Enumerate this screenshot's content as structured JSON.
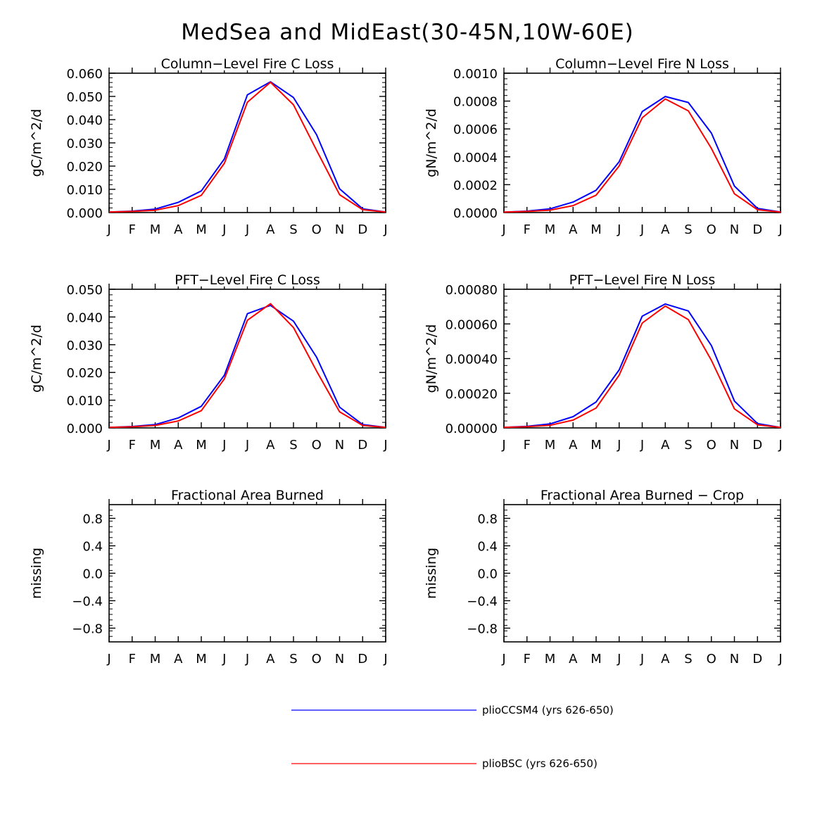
{
  "figure_title": "MedSea and MidEast(30-45N,10W-60E)",
  "legend": [
    {
      "label": "plioCCSM4 (yrs 626-650)",
      "color": "#0000ff"
    },
    {
      "label": "plioBSC (yrs 626-650)",
      "color": "#ff0000"
    }
  ],
  "chart_data": [
    {
      "type": "line",
      "title": "Column-Level Fire C Loss",
      "ylabel": "gC/m^2/d",
      "categories": [
        "J",
        "F",
        "M",
        "A",
        "M",
        "J",
        "J",
        "A",
        "S",
        "O",
        "N",
        "D",
        "J"
      ],
      "ylim": [
        0,
        0.06
      ],
      "yticks": [
        "0.000",
        "0.010",
        "0.020",
        "0.030",
        "0.040",
        "0.050",
        "0.060"
      ],
      "series": [
        {
          "name": "plioCCSM4 (yrs 626-650)",
          "color": "#0000ff",
          "values": [
            0.0002,
            0.0006,
            0.0015,
            0.0044,
            0.0093,
            0.0231,
            0.0507,
            0.0563,
            0.0495,
            0.0335,
            0.0102,
            0.0016,
            0.0002
          ]
        },
        {
          "name": "plioBSC (yrs 626-650)",
          "color": "#ff0000",
          "values": [
            0.0002,
            0.0005,
            0.001,
            0.003,
            0.0074,
            0.0212,
            0.0475,
            0.0561,
            0.0464,
            0.0268,
            0.0077,
            0.0012,
            0.0002
          ]
        }
      ]
    },
    {
      "type": "line",
      "title": "Column-Level Fire N Loss",
      "ylabel": "gN/m^2/d",
      "categories": [
        "J",
        "F",
        "M",
        "A",
        "M",
        "J",
        "J",
        "A",
        "S",
        "O",
        "N",
        "D",
        "J"
      ],
      "ylim": [
        0,
        0.001
      ],
      "yticks": [
        "0.0000",
        "0.0002",
        "0.0004",
        "0.0006",
        "0.0008",
        "0.0010"
      ],
      "series": [
        {
          "name": "plioCCSM4 (yrs 626-650)",
          "color": "#0000ff",
          "values": [
            3e-06,
            1e-05,
            2.7e-05,
            7.5e-05,
            0.00016,
            0.000365,
            0.000725,
            0.000833,
            0.00079,
            0.00057,
            0.00019,
            3e-05,
            4e-06
          ]
        },
        {
          "name": "plioBSC (yrs 626-650)",
          "color": "#ff0000",
          "values": [
            3e-06,
            8e-06,
            1.7e-05,
            5e-05,
            0.000125,
            0.000335,
            0.00068,
            0.000815,
            0.00073,
            0.00046,
            0.000135,
            2e-05,
            3e-06
          ]
        }
      ]
    },
    {
      "type": "line",
      "title": "PFT-Level Fire C Loss",
      "ylabel": "gC/m^2/d",
      "categories": [
        "J",
        "F",
        "M",
        "A",
        "M",
        "J",
        "J",
        "A",
        "S",
        "O",
        "N",
        "D",
        "J"
      ],
      "ylim": [
        0,
        0.05
      ],
      "yticks": [
        "0.000",
        "0.010",
        "0.020",
        "0.030",
        "0.040",
        "0.050"
      ],
      "series": [
        {
          "name": "plioCCSM4 (yrs 626-650)",
          "color": "#0000ff",
          "values": [
            0.0002,
            0.0005,
            0.0012,
            0.0036,
            0.0078,
            0.019,
            0.0412,
            0.0442,
            0.0385,
            0.0255,
            0.0075,
            0.0012,
            0.0002
          ]
        },
        {
          "name": "plioBSC (yrs 626-650)",
          "color": "#ff0000",
          "values": [
            0.0002,
            0.0004,
            0.0009,
            0.0025,
            0.0062,
            0.0177,
            0.0388,
            0.0448,
            0.0362,
            0.0205,
            0.0058,
            0.0009,
            0.0002
          ]
        }
      ]
    },
    {
      "type": "line",
      "title": "PFT-Level Fire N Loss",
      "ylabel": "gN/m^2/d",
      "categories": [
        "J",
        "F",
        "M",
        "A",
        "M",
        "J",
        "J",
        "A",
        "S",
        "O",
        "N",
        "D",
        "J"
      ],
      "ylim": [
        0,
        0.0008
      ],
      "yticks": [
        "0.00000",
        "0.00020",
        "0.00040",
        "0.00060",
        "0.00080"
      ],
      "series": [
        {
          "name": "plioCCSM4 (yrs 626-650)",
          "color": "#0000ff",
          "values": [
            3e-06,
            9e-06,
            2.3e-05,
            6.5e-05,
            0.00015,
            0.000335,
            0.000645,
            0.000715,
            0.000675,
            0.000475,
            0.000155,
            2.5e-05,
            3e-06
          ]
        },
        {
          "name": "plioBSC (yrs 626-650)",
          "color": "#ff0000",
          "values": [
            3e-06,
            7e-06,
            1.5e-05,
            4.5e-05,
            0.000115,
            0.000305,
            0.000605,
            0.000703,
            0.000625,
            0.00039,
            0.00011,
            1.8e-05,
            3e-06
          ]
        }
      ]
    },
    {
      "type": "line",
      "title": "Fractional Area Burned",
      "ylabel": "missing",
      "categories": [
        "J",
        "F",
        "M",
        "A",
        "M",
        "J",
        "J",
        "A",
        "S",
        "O",
        "N",
        "D",
        "J"
      ],
      "ylim": [
        -1,
        1
      ],
      "yticks": [
        "-0.8",
        "-0.4",
        "0.0",
        "0.4",
        "0.8"
      ],
      "series": []
    },
    {
      "type": "line",
      "title": "Fractional Area Burned - Crop",
      "ylabel": "missing",
      "categories": [
        "J",
        "F",
        "M",
        "A",
        "M",
        "J",
        "J",
        "A",
        "S",
        "O",
        "N",
        "D",
        "J"
      ],
      "ylim": [
        -1,
        1
      ],
      "yticks": [
        "-0.8",
        "-0.4",
        "0.0",
        "0.4",
        "0.8"
      ],
      "series": []
    }
  ]
}
